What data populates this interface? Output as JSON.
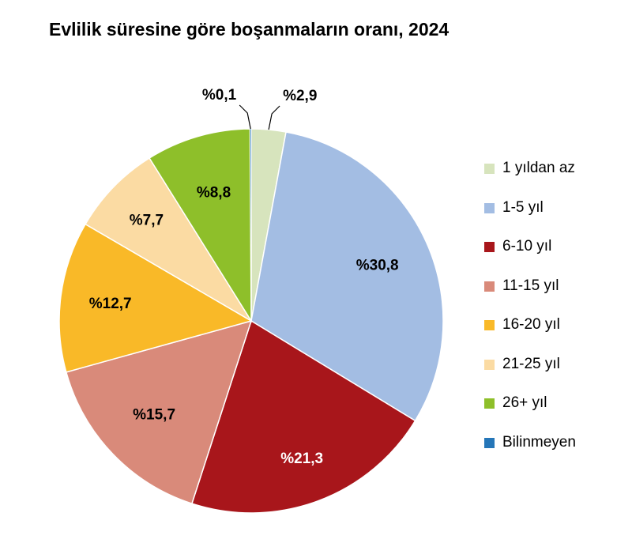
{
  "chart_data": {
    "type": "pie",
    "title": "Evlilik süresine göre boşanmaların oranı, 2024",
    "categories": [
      "1 yıldan az",
      "1-5 yıl",
      "6-10 yıl",
      "11-15 yıl",
      "16-20 yıl",
      "21-25 yıl",
      "26+ yıl",
      "Bilinmeyen"
    ],
    "values": [
      2.9,
      30.8,
      21.3,
      15.7,
      12.7,
      7.7,
      8.8,
      0.1
    ],
    "labels": [
      "%2,9",
      "%30,8",
      "%21,3",
      "%15,7",
      "%12,7",
      "%7,7",
      "%8,8",
      "%0,1"
    ],
    "colors": [
      "#d7e4bd",
      "#a3bde3",
      "#a8161b",
      "#d98a7a",
      "#f9b928",
      "#fbdba3",
      "#8ebf2a",
      "#2576b8"
    ],
    "label_colors": [
      "#000000",
      "#000000",
      "#ffffff",
      "#000000",
      "#000000",
      "#000000",
      "#000000",
      "#000000"
    ],
    "legend_position": "right",
    "start": "12 o'clock, clockwise"
  }
}
